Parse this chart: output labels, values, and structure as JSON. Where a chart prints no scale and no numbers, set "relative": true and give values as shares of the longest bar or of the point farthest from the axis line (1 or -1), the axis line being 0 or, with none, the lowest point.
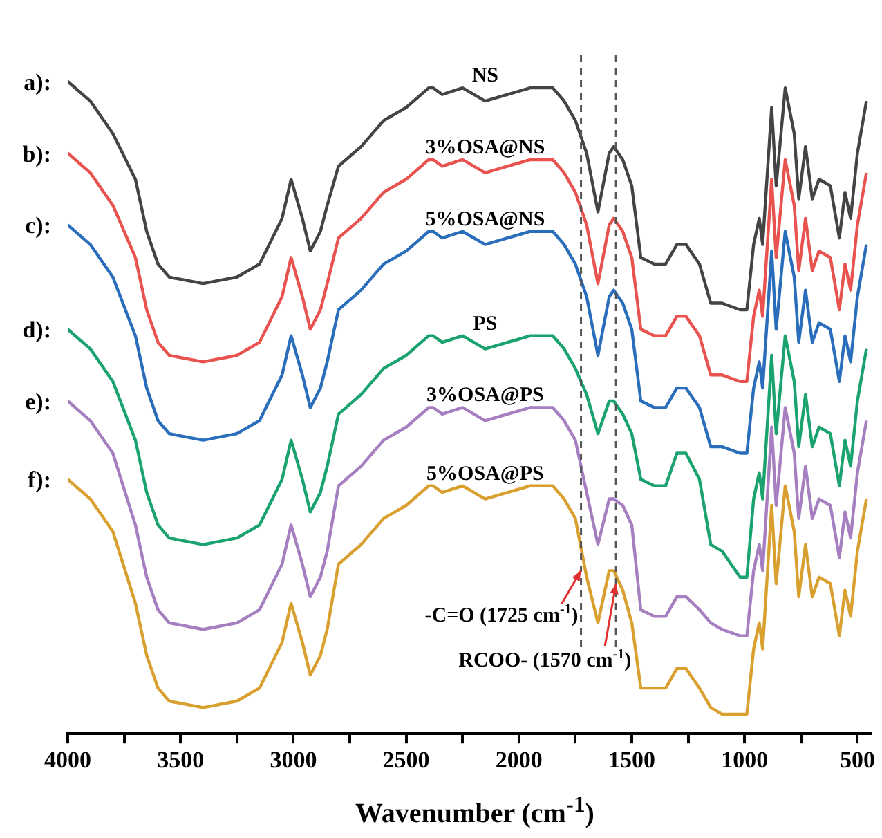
{
  "chart_data": {
    "type": "line",
    "relative": true,
    "xlabel": "Wavenumber (cm$^{-1}$)",
    "xlim": [
      4000,
      440
    ],
    "xticks": [
      4000,
      {
        "value": 3750,
        "label": null
      },
      3500,
      {
        "value": 3250,
        "label": null
      },
      3000,
      {
        "value": 2750,
        "label": null
      },
      2500,
      {
        "value": 2250,
        "label": null
      },
      2000,
      {
        "value": 1750,
        "label": null
      },
      1500,
      {
        "value": 1250,
        "label": null
      },
      1000,
      {
        "value": 750,
        "label": null
      },
      500
    ],
    "x": [
      4000,
      3900,
      3800,
      3700,
      3650,
      3600,
      3550,
      3400,
      3250,
      3150,
      3050,
      3010,
      2960,
      2925,
      2880,
      2850,
      2800,
      2700,
      2600,
      2500,
      2400,
      2380,
      2340,
      2250,
      2150,
      2050,
      1950,
      1850,
      1800,
      1750,
      1700,
      1650,
      1600,
      1580,
      1540,
      1500,
      1460,
      1400,
      1350,
      1300,
      1260,
      1200,
      1150,
      1100,
      1020,
      990,
      960,
      935,
      920,
      880,
      860,
      820,
      780,
      760,
      730,
      700,
      670,
      620,
      580,
      555,
      530,
      500,
      460
    ],
    "series": [
      {
        "name": "NS",
        "color": "#444444",
        "values": [
          1.0,
          0.97,
          0.92,
          0.85,
          0.77,
          0.72,
          0.7,
          0.69,
          0.7,
          0.72,
          0.79,
          0.85,
          0.79,
          0.74,
          0.77,
          0.81,
          0.87,
          0.9,
          0.94,
          0.96,
          0.99,
          0.99,
          0.98,
          0.99,
          0.97,
          0.98,
          0.99,
          0.99,
          0.97,
          0.94,
          0.89,
          0.8,
          0.89,
          0.9,
          0.88,
          0.84,
          0.73,
          0.72,
          0.72,
          0.75,
          0.75,
          0.72,
          0.66,
          0.66,
          0.65,
          0.65,
          0.75,
          0.79,
          0.75,
          0.96,
          0.84,
          0.99,
          0.92,
          0.82,
          0.9,
          0.82,
          0.85,
          0.84,
          0.76,
          0.83,
          0.79,
          0.89,
          0.97
        ]
      },
      {
        "name": "3%OSA@NS",
        "color": "#e8524f",
        "values": [
          0.89,
          0.86,
          0.81,
          0.73,
          0.65,
          0.6,
          0.58,
          0.57,
          0.58,
          0.6,
          0.67,
          0.73,
          0.67,
          0.62,
          0.65,
          0.69,
          0.76,
          0.79,
          0.83,
          0.85,
          0.88,
          0.88,
          0.87,
          0.88,
          0.86,
          0.87,
          0.88,
          0.88,
          0.86,
          0.83,
          0.78,
          0.69,
          0.78,
          0.79,
          0.77,
          0.73,
          0.62,
          0.61,
          0.61,
          0.64,
          0.64,
          0.61,
          0.55,
          0.55,
          0.54,
          0.54,
          0.64,
          0.68,
          0.64,
          0.85,
          0.73,
          0.88,
          0.81,
          0.71,
          0.79,
          0.71,
          0.74,
          0.73,
          0.65,
          0.72,
          0.68,
          0.78,
          0.86
        ]
      },
      {
        "name": "5%OSA@NS",
        "color": "#2a6ebb",
        "values": [
          0.78,
          0.75,
          0.7,
          0.61,
          0.53,
          0.48,
          0.46,
          0.45,
          0.46,
          0.48,
          0.55,
          0.61,
          0.55,
          0.5,
          0.53,
          0.57,
          0.65,
          0.68,
          0.72,
          0.74,
          0.77,
          0.77,
          0.76,
          0.77,
          0.75,
          0.76,
          0.77,
          0.77,
          0.75,
          0.72,
          0.67,
          0.58,
          0.67,
          0.68,
          0.66,
          0.62,
          0.51,
          0.5,
          0.5,
          0.53,
          0.53,
          0.5,
          0.44,
          0.44,
          0.43,
          0.43,
          0.53,
          0.57,
          0.53,
          0.74,
          0.62,
          0.77,
          0.7,
          0.6,
          0.68,
          0.6,
          0.63,
          0.62,
          0.54,
          0.61,
          0.57,
          0.67,
          0.75
        ]
      },
      {
        "name": "PS",
        "color": "#1aa36f",
        "values": [
          0.62,
          0.59,
          0.54,
          0.45,
          0.37,
          0.32,
          0.3,
          0.29,
          0.3,
          0.32,
          0.39,
          0.45,
          0.39,
          0.34,
          0.37,
          0.41,
          0.49,
          0.52,
          0.56,
          0.58,
          0.61,
          0.61,
          0.6,
          0.61,
          0.59,
          0.6,
          0.61,
          0.61,
          0.59,
          0.56,
          0.52,
          0.46,
          0.51,
          0.51,
          0.49,
          0.46,
          0.39,
          0.38,
          0.38,
          0.43,
          0.43,
          0.39,
          0.29,
          0.28,
          0.24,
          0.24,
          0.36,
          0.4,
          0.36,
          0.58,
          0.46,
          0.61,
          0.54,
          0.44,
          0.52,
          0.44,
          0.47,
          0.46,
          0.38,
          0.45,
          0.41,
          0.51,
          0.59
        ]
      },
      {
        "name": "3%OSA@PS",
        "color": "#a57fc0",
        "values": [
          0.51,
          0.48,
          0.43,
          0.32,
          0.24,
          0.19,
          0.17,
          0.16,
          0.17,
          0.19,
          0.26,
          0.32,
          0.26,
          0.21,
          0.24,
          0.28,
          0.38,
          0.41,
          0.45,
          0.47,
          0.5,
          0.5,
          0.49,
          0.5,
          0.48,
          0.49,
          0.5,
          0.5,
          0.48,
          0.45,
          0.37,
          0.29,
          0.36,
          0.36,
          0.35,
          0.32,
          0.19,
          0.18,
          0.18,
          0.21,
          0.21,
          0.19,
          0.17,
          0.16,
          0.15,
          0.15,
          0.25,
          0.29,
          0.25,
          0.47,
          0.35,
          0.5,
          0.43,
          0.33,
          0.41,
          0.33,
          0.36,
          0.35,
          0.27,
          0.34,
          0.3,
          0.4,
          0.48
        ]
      },
      {
        "name": "5%OSA@PS",
        "color": "#d9a030",
        "values": [
          0.39,
          0.36,
          0.31,
          0.2,
          0.12,
          0.07,
          0.05,
          0.04,
          0.05,
          0.07,
          0.14,
          0.2,
          0.14,
          0.09,
          0.12,
          0.16,
          0.26,
          0.29,
          0.33,
          0.35,
          0.38,
          0.38,
          0.37,
          0.38,
          0.36,
          0.37,
          0.38,
          0.38,
          0.36,
          0.33,
          0.24,
          0.17,
          0.25,
          0.25,
          0.22,
          0.17,
          0.07,
          0.07,
          0.07,
          0.1,
          0.1,
          0.07,
          0.04,
          0.03,
          0.03,
          0.03,
          0.13,
          0.17,
          0.13,
          0.35,
          0.23,
          0.38,
          0.31,
          0.21,
          0.29,
          0.21,
          0.24,
          0.23,
          0.15,
          0.22,
          0.18,
          0.28,
          0.36
        ]
      }
    ],
    "annotations": [
      {
        "text": "a):",
        "x": 4000,
        "y": 1.0
      },
      {
        "text": "b):",
        "x": 4000,
        "y": 0.89
      },
      {
        "text": "c):",
        "x": 4000,
        "y": 0.78
      },
      {
        "text": "d):",
        "x": 4000,
        "y": 0.62
      },
      {
        "text": "e):",
        "x": 4000,
        "y": 0.51
      },
      {
        "text": "f):",
        "x": 4000,
        "y": 0.39
      },
      {
        "text": "-C=O (1725 cm$^{-1}$)",
        "x": 1725,
        "y": 0.25
      },
      {
        "text": "RCOO- (1570 cm$^{-1}$)",
        "x": 1570,
        "y": 0.23
      }
    ],
    "ref_lines": [
      {
        "axis": "x",
        "value": 1725,
        "line_style": "dashed",
        "color": "#555555"
      },
      {
        "axis": "x",
        "value": 1570,
        "line_style": "dashed",
        "color": "#555555"
      }
    ],
    "marker": "none",
    "legend": false,
    "grid": false
  }
}
